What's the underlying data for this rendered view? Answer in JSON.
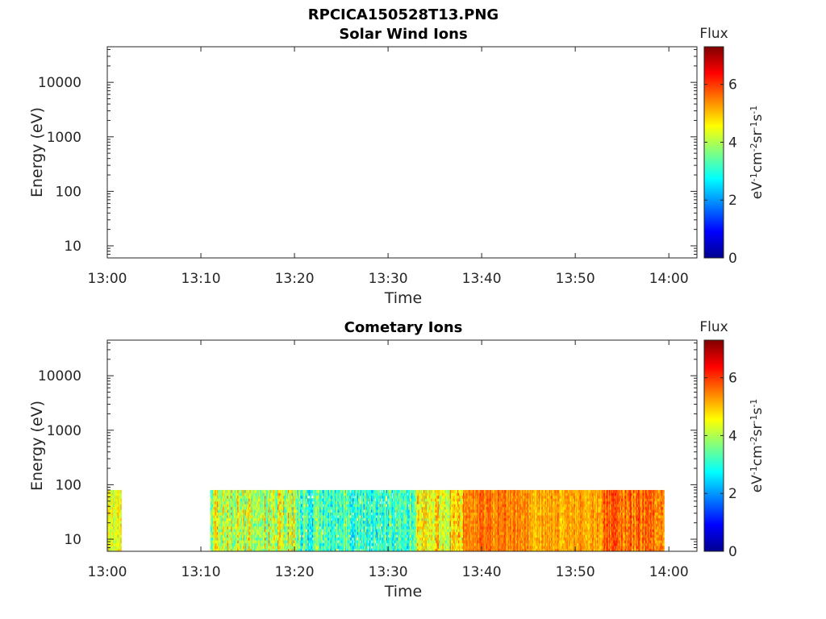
{
  "figure_title": "RPCICA150528T13.PNG",
  "chart_data": [
    {
      "type": "heatmap",
      "title": "Solar Wind Ions",
      "xlabel": "Time",
      "ylabel": "Energy (eV)",
      "x_ticks": [
        "13:00",
        "13:10",
        "13:20",
        "13:30",
        "13:40",
        "13:50",
        "14:00"
      ],
      "xlim": [
        "13:00",
        "14:03"
      ],
      "y_scale": "log",
      "y_ticks": [
        "10",
        "100",
        "1000",
        "10000"
      ],
      "ylim": [
        6,
        45000
      ],
      "colorbar": {
        "title": "Flux",
        "label": "eV-1cm-2sr-1s-1",
        "ticks": [
          "0",
          "2",
          "4",
          "6"
        ],
        "range": [
          0,
          7.3
        ],
        "colormap": "jet"
      },
      "data_blocks": []
    },
    {
      "type": "heatmap",
      "title": "Cometary Ions",
      "xlabel": "Time",
      "ylabel": "Energy (eV)",
      "x_ticks": [
        "13:00",
        "13:10",
        "13:20",
        "13:30",
        "13:40",
        "13:50",
        "14:00"
      ],
      "xlim": [
        "13:00",
        "14:03"
      ],
      "y_scale": "log",
      "y_ticks": [
        "10",
        "100",
        "1000",
        "10000"
      ],
      "ylim": [
        6,
        45000
      ],
      "colorbar": {
        "title": "Flux",
        "label": "eV-1cm-2sr-1s-1",
        "ticks": [
          "0",
          "2",
          "4",
          "6"
        ],
        "range": [
          0,
          7.3
        ],
        "colormap": "jet"
      },
      "energy_range_eV": [
        6,
        80
      ],
      "data_blocks": [
        {
          "start": "13:00",
          "end": "13:01:30",
          "flux": 4.3,
          "spread": 0.7
        },
        {
          "start": "13:11",
          "end": "13:20",
          "flux": 4.2,
          "spread": 1.1
        },
        {
          "start": "13:20",
          "end": "13:33",
          "flux": 3.2,
          "spread": 1.0
        },
        {
          "start": "13:33",
          "end": "13:38",
          "flux": 4.6,
          "spread": 0.9
        },
        {
          "start": "13:38",
          "end": "13:45",
          "flux": 5.5,
          "spread": 0.5
        },
        {
          "start": "13:45",
          "end": "13:53",
          "flux": 5.2,
          "spread": 0.5
        },
        {
          "start": "13:53",
          "end": "13:59:30",
          "flux": 5.6,
          "spread": 0.6
        }
      ]
    }
  ]
}
